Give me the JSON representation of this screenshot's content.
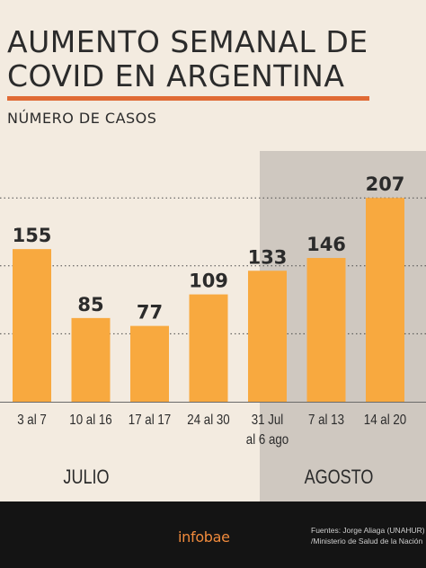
{
  "title_lines": [
    "AUMENTO SEMANAL DE",
    "COVID EN ARGENTINA"
  ],
  "subtitle": "NÚMERO DE CASOS",
  "colors": {
    "background": "#f3ebe0",
    "bar": "#f8a93f",
    "accent_rule": "#e06a35",
    "highlight_panel": "#cfc8c0",
    "footer": "#141414",
    "brand": "#f08a3c"
  },
  "chart_data": {
    "type": "bar",
    "categories": [
      [
        "3 al 7"
      ],
      [
        "10 al 16"
      ],
      [
        "17 al 17"
      ],
      [
        "24 al 30"
      ],
      [
        "31 Jul",
        "al 6 ago"
      ],
      [
        "7 al 13"
      ],
      [
        "14 al 20"
      ]
    ],
    "values": [
      155,
      85,
      77,
      109,
      133,
      146,
      207
    ],
    "value_labels": [
      "155",
      "85",
      "77",
      "109",
      "133",
      "146",
      "207"
    ],
    "ylim": [
      0,
      230
    ],
    "grid": true,
    "groups": [
      {
        "label": "JULIO",
        "highlighted": false
      },
      {
        "label": "AGOSTO",
        "highlighted": true
      }
    ]
  },
  "footer": {
    "brand": "infobae",
    "source_lines": [
      "Fuentes: Jorge Aliaga (UNAHUR)",
      "/Ministerio de Salud de la Nación"
    ]
  }
}
